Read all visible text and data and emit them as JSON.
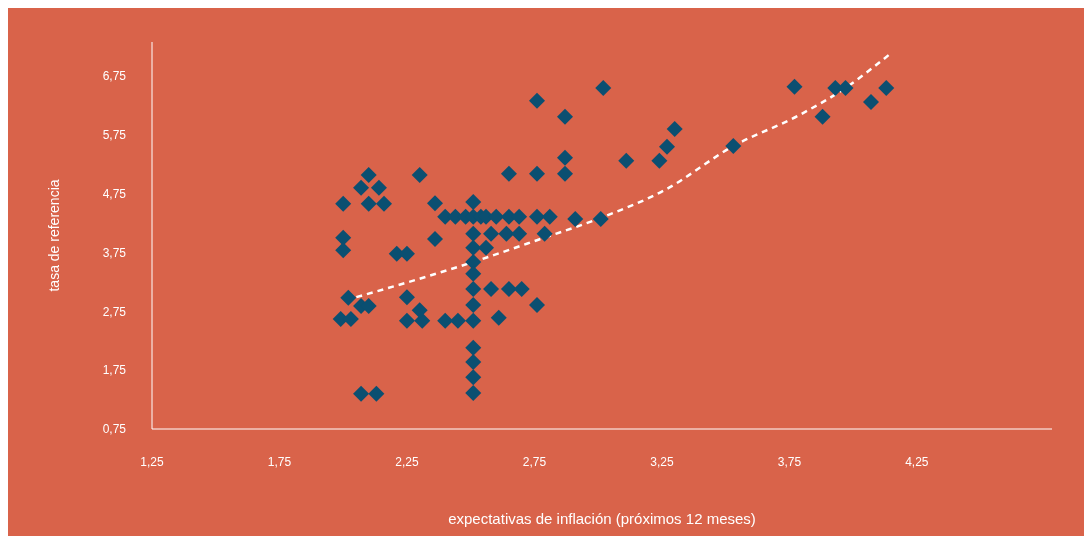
{
  "chart_data": {
    "type": "scatter",
    "xlabel": "expectativas de inflación (próximos 12 meses)",
    "ylabel": "tasa de referencia",
    "xlim": [
      1.25,
      4.78
    ],
    "ylim": [
      0.75,
      7.33
    ],
    "xticks": [
      {
        "value": 1.25,
        "label": "1,25"
      },
      {
        "value": 1.75,
        "label": "1,75"
      },
      {
        "value": 2.25,
        "label": "2,25"
      },
      {
        "value": 2.75,
        "label": "2,75"
      },
      {
        "value": 3.25,
        "label": "3,25"
      },
      {
        "value": 3.75,
        "label": "3,75"
      },
      {
        "value": 4.25,
        "label": "4,25"
      }
    ],
    "yticks": [
      {
        "value": 0.75,
        "label": "0,75"
      },
      {
        "value": 1.75,
        "label": "1,75"
      },
      {
        "value": 2.75,
        "label": "2,75"
      },
      {
        "value": 3.75,
        "label": "3,75"
      },
      {
        "value": 4.75,
        "label": "4,75"
      },
      {
        "value": 5.75,
        "label": "5,75"
      },
      {
        "value": 6.75,
        "label": "6,75"
      }
    ],
    "grid": false,
    "marker": "diamond",
    "series": [
      {
        "color": "#0b4f71",
        "x": [
          1.99,
          2.03,
          2.0,
          2.0,
          2.0,
          2.02,
          2.07,
          2.07,
          2.13,
          2.07,
          2.1,
          2.1,
          2.1,
          2.14,
          2.16,
          2.21,
          2.25,
          2.25,
          2.25,
          2.31,
          2.3,
          2.3,
          2.36,
          2.36,
          2.4,
          2.4,
          2.44,
          2.45,
          2.48,
          2.51,
          2.51,
          2.51,
          2.51,
          2.51,
          2.51,
          2.51,
          2.51,
          2.51,
          2.51,
          2.51,
          2.51,
          2.51,
          2.54,
          2.58,
          2.56,
          2.56,
          2.58,
          2.6,
          2.64,
          2.65,
          2.69,
          2.69,
          2.61,
          2.65,
          2.7,
          2.76,
          2.76,
          2.79,
          2.81,
          2.91,
          3.01,
          2.65,
          2.76,
          2.76,
          2.87,
          2.87,
          2.87,
          3.02,
          3.11,
          3.24,
          3.27,
          3.3,
          3.53,
          3.77,
          3.88,
          3.93,
          3.97,
          4.07,
          4.13
        ],
        "values": [
          2.62,
          2.62,
          4.58,
          4.0,
          3.79,
          2.98,
          4.85,
          1.35,
          1.35,
          2.84,
          2.84,
          5.07,
          4.58,
          4.85,
          4.58,
          3.73,
          3.73,
          2.99,
          2.59,
          2.59,
          2.77,
          5.07,
          4.59,
          3.98,
          4.36,
          2.59,
          4.36,
          2.59,
          4.36,
          4.36,
          4.61,
          4.07,
          3.83,
          3.59,
          3.39,
          3.13,
          2.86,
          2.59,
          2.13,
          1.89,
          1.63,
          1.36,
          4.36,
          3.13,
          3.83,
          4.36,
          4.07,
          4.36,
          4.07,
          4.36,
          4.07,
          4.36,
          2.64,
          3.13,
          3.13,
          2.86,
          4.36,
          4.07,
          4.36,
          4.32,
          4.32,
          5.09,
          5.09,
          6.33,
          5.09,
          5.36,
          6.06,
          6.55,
          5.31,
          5.31,
          5.55,
          5.85,
          5.56,
          6.57,
          6.06,
          6.55,
          6.55,
          6.31,
          6.55
        ]
      },
      {
        "type": "line",
        "color": "#ffffff",
        "line_style": "dashed",
        "marker": "none",
        "x": [
          2.01,
          2.51,
          2.76,
          3.01,
          3.26,
          3.53,
          3.79,
          3.97,
          4.14
        ],
        "values": [
          2.94,
          3.59,
          3.96,
          4.34,
          4.81,
          5.56,
          6.09,
          6.55,
          7.11
        ]
      }
    ]
  }
}
